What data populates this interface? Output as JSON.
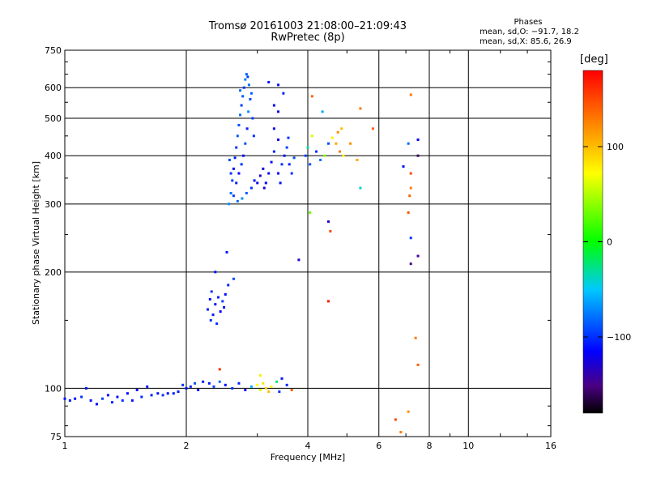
{
  "header": {
    "title_line1": "Tromsø 20161003 21:08:00–21:09:43",
    "title_line2": "RwPretec (8p)"
  },
  "stats": {
    "title": "Phases",
    "line_o": "mean, sd,O: −91.7, 18.2",
    "line_x": "mean, sd,X:  85.6, 26.9"
  },
  "colorbar": {
    "unit": "[deg]",
    "range": [
      -180,
      180
    ],
    "ticks": [
      {
        "value": 100,
        "label": "100"
      },
      {
        "value": 0,
        "label": "0"
      },
      {
        "value": -100,
        "label": "−100"
      }
    ]
  },
  "chart_data": {
    "type": "scatter",
    "xlabel": "Frequency [MHz]",
    "ylabel": "Stationary phase Virtual Height [km]",
    "x_scale": "log",
    "y_scale": "log",
    "xlim": [
      1,
      16
    ],
    "ylim": [
      75,
      750
    ],
    "grid": true,
    "x_ticks": [
      {
        "value": 1,
        "label": "1"
      },
      {
        "value": 2,
        "label": "2"
      },
      {
        "value": 4,
        "label": "4"
      },
      {
        "value": 6,
        "label": "6"
      },
      {
        "value": 8,
        "label": "8"
      },
      {
        "value": 10,
        "label": "10"
      },
      {
        "value": 16,
        "label": "16"
      }
    ],
    "y_ticks": [
      {
        "value": 75,
        "label": "75"
      },
      {
        "value": 100,
        "label": "100"
      },
      {
        "value": 200,
        "label": "200"
      },
      {
        "value": 300,
        "label": "300"
      },
      {
        "value": 400,
        "label": "400"
      },
      {
        "value": 500,
        "label": "500"
      },
      {
        "value": 600,
        "label": "600"
      },
      {
        "value": 750,
        "label": "750"
      }
    ],
    "points": [
      {
        "x": 1.0,
        "y": 94,
        "c": -110
      },
      {
        "x": 1.03,
        "y": 93,
        "c": -105
      },
      {
        "x": 1.06,
        "y": 94,
        "c": -112
      },
      {
        "x": 1.1,
        "y": 95,
        "c": -100
      },
      {
        "x": 1.13,
        "y": 100,
        "c": -110
      },
      {
        "x": 1.16,
        "y": 93,
        "c": -108
      },
      {
        "x": 1.2,
        "y": 91,
        "c": -115
      },
      {
        "x": 1.24,
        "y": 94,
        "c": -95
      },
      {
        "x": 1.28,
        "y": 96,
        "c": -112
      },
      {
        "x": 1.31,
        "y": 92,
        "c": -105
      },
      {
        "x": 1.35,
        "y": 95,
        "c": -110
      },
      {
        "x": 1.39,
        "y": 93,
        "c": -100
      },
      {
        "x": 1.43,
        "y": 97,
        "c": -115
      },
      {
        "x": 1.47,
        "y": 93,
        "c": -108
      },
      {
        "x": 1.51,
        "y": 99,
        "c": -112
      },
      {
        "x": 1.55,
        "y": 95,
        "c": -102
      },
      {
        "x": 1.6,
        "y": 101,
        "c": -110
      },
      {
        "x": 1.64,
        "y": 96,
        "c": -105
      },
      {
        "x": 1.7,
        "y": 97,
        "c": -110
      },
      {
        "x": 1.75,
        "y": 96,
        "c": -100
      },
      {
        "x": 1.8,
        "y": 97,
        "c": -112
      },
      {
        "x": 1.86,
        "y": 97,
        "c": -106
      },
      {
        "x": 1.91,
        "y": 98,
        "c": -110
      },
      {
        "x": 1.96,
        "y": 102,
        "c": -100
      },
      {
        "x": 2.0,
        "y": 100,
        "c": -112
      },
      {
        "x": 2.05,
        "y": 101,
        "c": -105
      },
      {
        "x": 2.1,
        "y": 103,
        "c": -90
      },
      {
        "x": 2.14,
        "y": 99,
        "c": -110
      },
      {
        "x": 2.2,
        "y": 104,
        "c": -108
      },
      {
        "x": 2.28,
        "y": 103,
        "c": -110
      },
      {
        "x": 2.34,
        "y": 101,
        "c": -95
      },
      {
        "x": 2.42,
        "y": 104,
        "c": -80
      },
      {
        "x": 2.5,
        "y": 102,
        "c": -112
      },
      {
        "x": 2.6,
        "y": 100,
        "c": -100
      },
      {
        "x": 2.7,
        "y": 103,
        "c": -105
      },
      {
        "x": 2.8,
        "y": 99,
        "c": -110
      },
      {
        "x": 2.9,
        "y": 101,
        "c": -60
      },
      {
        "x": 3.0,
        "y": 102,
        "c": 70
      },
      {
        "x": 3.05,
        "y": 99,
        "c": 60
      },
      {
        "x": 3.1,
        "y": 103,
        "c": 85
      },
      {
        "x": 3.15,
        "y": 100,
        "c": 90
      },
      {
        "x": 3.2,
        "y": 98,
        "c": 100
      },
      {
        "x": 3.25,
        "y": 101,
        "c": 75
      },
      {
        "x": 3.35,
        "y": 104,
        "c": -20
      },
      {
        "x": 3.45,
        "y": 106,
        "c": -110
      },
      {
        "x": 3.55,
        "y": 102,
        "c": -105
      },
      {
        "x": 3.65,
        "y": 99,
        "c": 140
      },
      {
        "x": 2.42,
        "y": 112,
        "c": 160
      },
      {
        "x": 3.05,
        "y": 108,
        "c": 80
      },
      {
        "x": 3.4,
        "y": 98,
        "c": -100
      },
      {
        "x": 2.26,
        "y": 160,
        "c": -105
      },
      {
        "x": 2.29,
        "y": 170,
        "c": -110
      },
      {
        "x": 2.3,
        "y": 150,
        "c": -100
      },
      {
        "x": 2.33,
        "y": 155,
        "c": -108
      },
      {
        "x": 2.36,
        "y": 165,
        "c": -112
      },
      {
        "x": 2.38,
        "y": 147,
        "c": -100
      },
      {
        "x": 2.4,
        "y": 172,
        "c": -105
      },
      {
        "x": 2.43,
        "y": 158,
        "c": -115
      },
      {
        "x": 2.46,
        "y": 168,
        "c": -95
      },
      {
        "x": 2.5,
        "y": 175,
        "c": -110
      },
      {
        "x": 2.54,
        "y": 185,
        "c": -105
      },
      {
        "x": 2.36,
        "y": 200,
        "c": -112
      },
      {
        "x": 2.52,
        "y": 225,
        "c": -110
      },
      {
        "x": 2.62,
        "y": 192,
        "c": -90
      },
      {
        "x": 2.31,
        "y": 178,
        "c": -100
      },
      {
        "x": 2.48,
        "y": 162,
        "c": -108
      },
      {
        "x": 2.55,
        "y": 300,
        "c": -70
      },
      {
        "x": 2.58,
        "y": 320,
        "c": -80
      },
      {
        "x": 2.6,
        "y": 345,
        "c": -95
      },
      {
        "x": 2.62,
        "y": 370,
        "c": -110
      },
      {
        "x": 2.64,
        "y": 395,
        "c": -105
      },
      {
        "x": 2.66,
        "y": 420,
        "c": -100
      },
      {
        "x": 2.68,
        "y": 450,
        "c": -85
      },
      {
        "x": 2.7,
        "y": 480,
        "c": -90
      },
      {
        "x": 2.72,
        "y": 510,
        "c": -80
      },
      {
        "x": 2.74,
        "y": 540,
        "c": -95
      },
      {
        "x": 2.76,
        "y": 570,
        "c": -88
      },
      {
        "x": 2.78,
        "y": 600,
        "c": -100
      },
      {
        "x": 2.8,
        "y": 630,
        "c": -75
      },
      {
        "x": 2.82,
        "y": 650,
        "c": -85
      },
      {
        "x": 2.84,
        "y": 640,
        "c": -95
      },
      {
        "x": 2.86,
        "y": 610,
        "c": -80
      },
      {
        "x": 2.88,
        "y": 560,
        "c": -92
      },
      {
        "x": 2.85,
        "y": 520,
        "c": -70
      },
      {
        "x": 2.83,
        "y": 470,
        "c": -105
      },
      {
        "x": 2.8,
        "y": 430,
        "c": -90
      },
      {
        "x": 2.77,
        "y": 400,
        "c": -110
      },
      {
        "x": 2.74,
        "y": 380,
        "c": -100
      },
      {
        "x": 2.7,
        "y": 360,
        "c": -115
      },
      {
        "x": 2.66,
        "y": 340,
        "c": -105
      },
      {
        "x": 2.62,
        "y": 315,
        "c": -95
      },
      {
        "x": 2.68,
        "y": 305,
        "c": -80
      },
      {
        "x": 2.75,
        "y": 310,
        "c": -70
      },
      {
        "x": 2.82,
        "y": 320,
        "c": -85
      },
      {
        "x": 2.9,
        "y": 330,
        "c": -100
      },
      {
        "x": 2.95,
        "y": 345,
        "c": -110
      },
      {
        "x": 2.58,
        "y": 360,
        "c": -100
      },
      {
        "x": 2.56,
        "y": 390,
        "c": -90
      },
      {
        "x": 2.9,
        "y": 580,
        "c": -85
      },
      {
        "x": 2.92,
        "y": 500,
        "c": -95
      },
      {
        "x": 2.94,
        "y": 450,
        "c": -100
      },
      {
        "x": 2.72,
        "y": 590,
        "c": -80
      },
      {
        "x": 3.0,
        "y": 340,
        "c": -120
      },
      {
        "x": 3.05,
        "y": 355,
        "c": -130
      },
      {
        "x": 3.1,
        "y": 370,
        "c": -125
      },
      {
        "x": 3.15,
        "y": 340,
        "c": -115
      },
      {
        "x": 3.2,
        "y": 360,
        "c": -120
      },
      {
        "x": 3.25,
        "y": 385,
        "c": -110
      },
      {
        "x": 3.3,
        "y": 410,
        "c": -105
      },
      {
        "x": 3.3,
        "y": 470,
        "c": -120
      },
      {
        "x": 3.3,
        "y": 540,
        "c": -115
      },
      {
        "x": 3.38,
        "y": 610,
        "c": -110
      },
      {
        "x": 3.38,
        "y": 520,
        "c": -120
      },
      {
        "x": 3.38,
        "y": 440,
        "c": -125
      },
      {
        "x": 3.38,
        "y": 360,
        "c": -115
      },
      {
        "x": 3.45,
        "y": 380,
        "c": -100
      },
      {
        "x": 3.5,
        "y": 400,
        "c": -110
      },
      {
        "x": 3.55,
        "y": 420,
        "c": -95
      },
      {
        "x": 3.6,
        "y": 380,
        "c": -105
      },
      {
        "x": 3.65,
        "y": 360,
        "c": -100
      },
      {
        "x": 3.7,
        "y": 395,
        "c": -90
      },
      {
        "x": 3.48,
        "y": 580,
        "c": -105
      },
      {
        "x": 3.2,
        "y": 620,
        "c": -110
      },
      {
        "x": 3.12,
        "y": 330,
        "c": -125
      },
      {
        "x": 3.42,
        "y": 340,
        "c": -110
      },
      {
        "x": 3.58,
        "y": 445,
        "c": -100
      },
      {
        "x": 3.8,
        "y": 215,
        "c": -130
      },
      {
        "x": 3.95,
        "y": 400,
        "c": -95
      },
      {
        "x": 4.0,
        "y": 420,
        "c": -30
      },
      {
        "x": 4.05,
        "y": 380,
        "c": -90
      },
      {
        "x": 4.1,
        "y": 450,
        "c": 60
      },
      {
        "x": 4.1,
        "y": 570,
        "c": 140
      },
      {
        "x": 4.2,
        "y": 410,
        "c": -100
      },
      {
        "x": 4.3,
        "y": 390,
        "c": -80
      },
      {
        "x": 4.35,
        "y": 520,
        "c": -60
      },
      {
        "x": 4.4,
        "y": 400,
        "c": 40
      },
      {
        "x": 4.5,
        "y": 430,
        "c": -90
      },
      {
        "x": 4.6,
        "y": 445,
        "c": 80
      },
      {
        "x": 4.7,
        "y": 430,
        "c": 110
      },
      {
        "x": 4.8,
        "y": 410,
        "c": 130
      },
      {
        "x": 4.75,
        "y": 460,
        "c": 120
      },
      {
        "x": 4.85,
        "y": 470,
        "c": 100
      },
      {
        "x": 4.9,
        "y": 400,
        "c": 70
      },
      {
        "x": 5.1,
        "y": 430,
        "c": 120
      },
      {
        "x": 5.3,
        "y": 390,
        "c": 110
      },
      {
        "x": 5.4,
        "y": 330,
        "c": -40
      },
      {
        "x": 5.8,
        "y": 470,
        "c": 140
      },
      {
        "x": 5.4,
        "y": 530,
        "c": 130
      },
      {
        "x": 4.05,
        "y": 285,
        "c": 30
      },
      {
        "x": 4.5,
        "y": 270,
        "c": -130
      },
      {
        "x": 4.55,
        "y": 255,
        "c": 150
      },
      {
        "x": 4.5,
        "y": 168,
        "c": 170
      },
      {
        "x": 6.9,
        "y": 375,
        "c": -110
      },
      {
        "x": 7.1,
        "y": 430,
        "c": -80
      },
      {
        "x": 7.2,
        "y": 575,
        "c": 130
      },
      {
        "x": 7.2,
        "y": 360,
        "c": 150
      },
      {
        "x": 7.2,
        "y": 330,
        "c": 130
      },
      {
        "x": 7.15,
        "y": 315,
        "c": 140
      },
      {
        "x": 7.1,
        "y": 285,
        "c": 145
      },
      {
        "x": 7.2,
        "y": 245,
        "c": -100
      },
      {
        "x": 7.2,
        "y": 210,
        "c": -150
      },
      {
        "x": 7.5,
        "y": 220,
        "c": -145
      },
      {
        "x": 7.5,
        "y": 400,
        "c": -160
      },
      {
        "x": 7.5,
        "y": 440,
        "c": -120
      },
      {
        "x": 7.4,
        "y": 135,
        "c": 130
      },
      {
        "x": 7.5,
        "y": 115,
        "c": 140
      },
      {
        "x": 6.6,
        "y": 83,
        "c": 150
      },
      {
        "x": 7.1,
        "y": 87,
        "c": 120
      },
      {
        "x": 6.8,
        "y": 77,
        "c": 130
      }
    ]
  }
}
